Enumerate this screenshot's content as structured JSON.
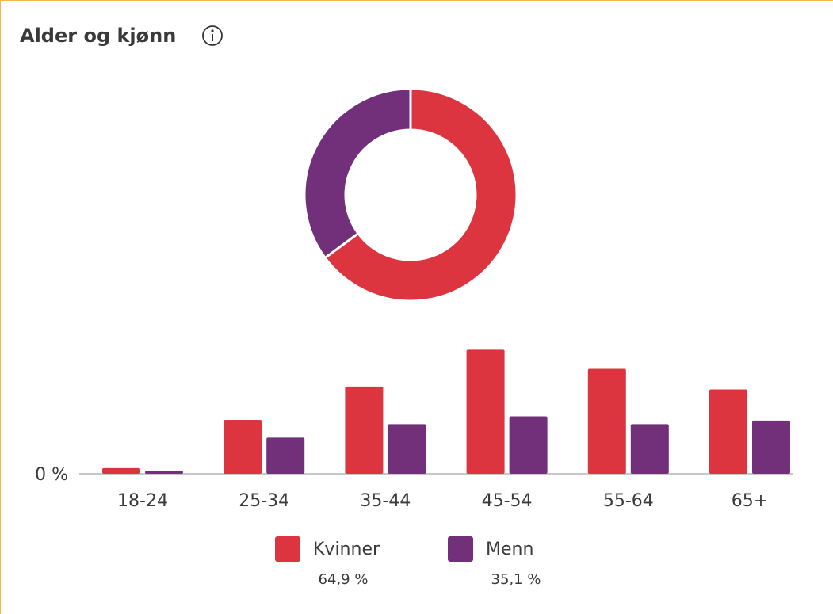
{
  "header": {
    "title": "Alder og kjønn"
  },
  "chart_data": [
    {
      "type": "pie",
      "categories": [
        "Kvinner",
        "Menn"
      ],
      "values": [
        64.9,
        35.1
      ],
      "value_labels": [
        "64,9 %",
        "35,1 %"
      ],
      "colors": [
        "#dc3540",
        "#73307a"
      ],
      "donut": true
    },
    {
      "type": "bar",
      "categories": [
        "18-24",
        "25-34",
        "35-44",
        "45-54",
        "55-64",
        "65+"
      ],
      "series": [
        {
          "name": "Kvinner",
          "color": "#dc3540",
          "values": [
            0.8,
            7.6,
            12.3,
            17.5,
            14.8,
            11.9
          ]
        },
        {
          "name": "Menn",
          "color": "#73307a",
          "values": [
            0.4,
            5.1,
            7.0,
            8.1,
            7.0,
            7.5
          ]
        }
      ],
      "ylim": [
        0,
        20
      ],
      "yticks": [
        {
          "value": 0,
          "label": "0 %"
        }
      ]
    }
  ]
}
